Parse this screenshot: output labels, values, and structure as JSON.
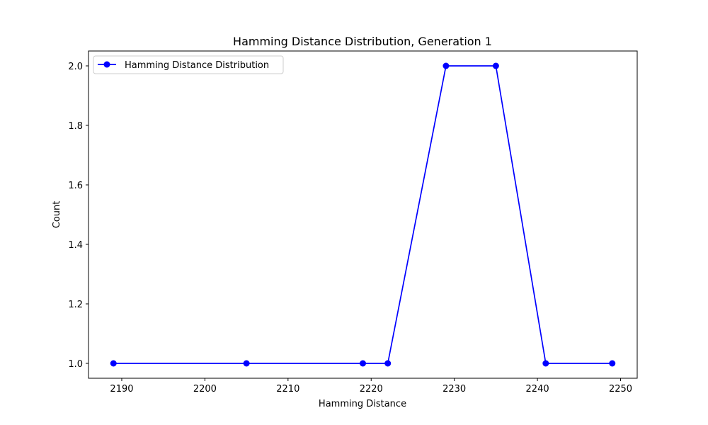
{
  "chart_data": {
    "type": "line",
    "title": "Hamming Distance Distribution, Generation 1",
    "xlabel": "Hamming Distance",
    "ylabel": "Count",
    "xlim": [
      2186.0,
      2252.0
    ],
    "ylim": [
      0.95,
      2.05
    ],
    "xticks": [
      2190,
      2200,
      2210,
      2220,
      2230,
      2240,
      2250
    ],
    "yticks": [
      1.0,
      1.2,
      1.4,
      1.6,
      1.8,
      2.0
    ],
    "ytick_labels": [
      "1.0",
      "1.2",
      "1.4",
      "1.6",
      "1.8",
      "2.0"
    ],
    "grid": false,
    "legend_position": "upper-left",
    "series": [
      {
        "name": "Hamming Distance Distribution",
        "color": "#0000ff",
        "marker": "circle",
        "x": [
          2189,
          2205,
          2219,
          2222,
          2229,
          2235,
          2241,
          2249
        ],
        "y": [
          1,
          1,
          1,
          1,
          2,
          2,
          1,
          1
        ]
      }
    ]
  }
}
